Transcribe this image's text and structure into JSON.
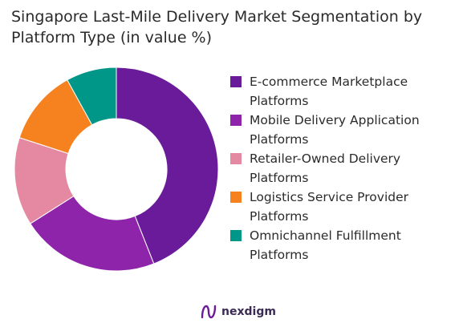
{
  "chart_data": {
    "type": "pie",
    "donut": true,
    "title_lines": [
      "Singapore Last-Mile Delivery Market Segmentation by",
      "Platform Type (in value %)"
    ],
    "series": [
      {
        "name": "E-commerce Marketplace Platforms",
        "label_lines": [
          "E-commerce Marketplace",
          "Platforms"
        ],
        "value": 44,
        "color": "#6a1b9a"
      },
      {
        "name": "Mobile Delivery Application Platforms",
        "label_lines": [
          "Mobile Delivery Application",
          "Platforms"
        ],
        "value": 22,
        "color": "#8e24aa"
      },
      {
        "name": "Retailer-Owned Delivery Platforms",
        "label_lines": [
          "Retailer-Owned Delivery",
          "Platforms"
        ],
        "value": 14,
        "color": "#e589a3"
      },
      {
        "name": "Logistics Service Provider Platforms",
        "label_lines": [
          "Logistics Service Provider",
          "Platforms"
        ],
        "value": 12,
        "color": "#f5821f"
      },
      {
        "name": "Omnichannel Fulfillment Platforms",
        "label_lines": [
          "Omnichannel Fulfillment",
          "Platforms"
        ],
        "value": 8,
        "color": "#009688"
      }
    ],
    "legend_position": "right"
  },
  "brand": {
    "name": "nexdigm",
    "logo_icon": "nexdigm-logo-icon",
    "color": "#6a1b9a"
  }
}
